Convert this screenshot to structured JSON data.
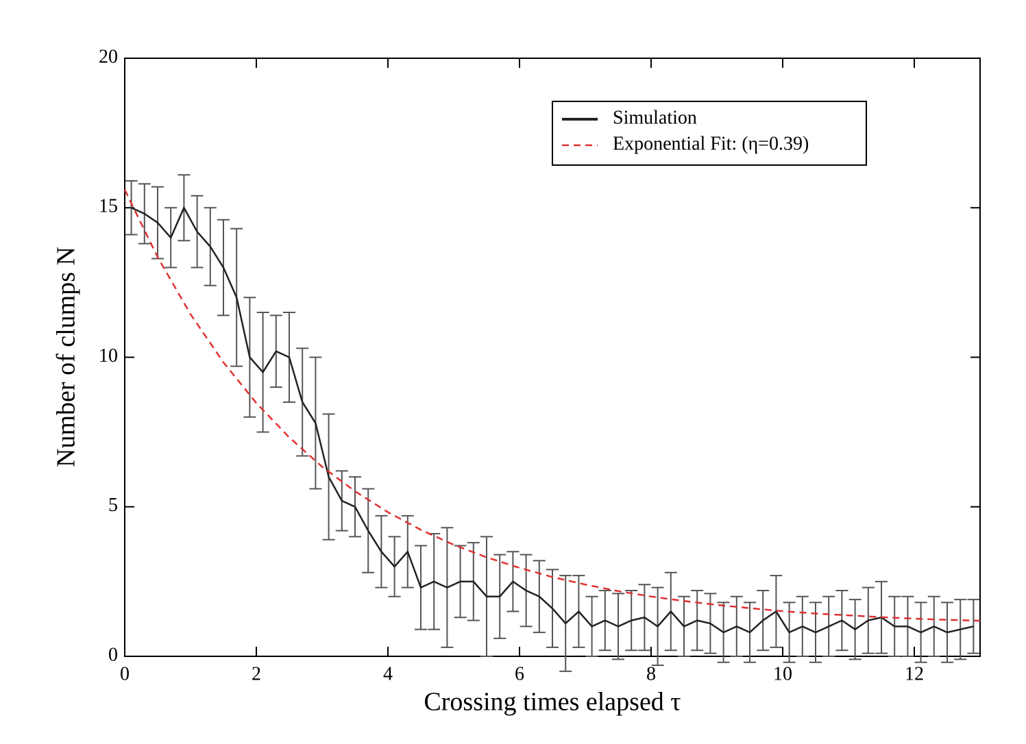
{
  "chart_data": {
    "type": "line",
    "xlabel": "Crossing times elapsed τ",
    "ylabel": "Number of clumps N",
    "xlim": [
      0,
      13
    ],
    "xticks": [
      0,
      2,
      4,
      6,
      8,
      10,
      12
    ],
    "ylim": [
      0,
      20
    ],
    "yticks": [
      0,
      5,
      10,
      15,
      20
    ],
    "legend": "upper right",
    "series": [
      {
        "name": "Simulation",
        "color": "#222222",
        "style": "solid",
        "x": [
          0.1,
          0.3,
          0.5,
          0.7,
          0.9,
          1.1,
          1.3,
          1.5,
          1.7,
          1.9,
          2.1,
          2.3,
          2.5,
          2.7,
          2.9,
          3.1,
          3.3,
          3.5,
          3.7,
          3.9,
          4.1,
          4.3,
          4.5,
          4.7,
          4.9,
          5.1,
          5.3,
          5.5,
          5.7,
          5.9,
          6.1,
          6.3,
          6.5,
          6.7,
          6.9,
          7.1,
          7.3,
          7.5,
          7.7,
          7.9,
          8.1,
          8.3,
          8.5,
          8.7,
          8.9,
          9.1,
          9.3,
          9.5,
          9.7,
          9.9,
          10.1,
          10.3,
          10.5,
          10.7,
          10.9,
          11.1,
          11.3,
          11.5,
          11.7,
          11.9,
          12.1,
          12.3,
          12.5,
          12.7,
          12.9
        ],
        "values": [
          15,
          14.8,
          14.5,
          14,
          15,
          14.2,
          13.7,
          13,
          12,
          10,
          9.5,
          10.2,
          10,
          8.5,
          7.8,
          6,
          5.2,
          5,
          4.2,
          3.5,
          3,
          3.5,
          2.3,
          2.5,
          2.3,
          2.5,
          2.5,
          2,
          2,
          2.5,
          2.2,
          2,
          1.6,
          1.1,
          1.5,
          1,
          1.2,
          1,
          1.2,
          1.3,
          1,
          1.5,
          1,
          1.2,
          1.1,
          0.8,
          1,
          0.8,
          1.2,
          1.5,
          0.8,
          1,
          0.8,
          1,
          1.2,
          0.9,
          1.2,
          1.3,
          1,
          1,
          0.8,
          1,
          0.8,
          0.9,
          1
        ],
        "errors": [
          0.9,
          1,
          1.2,
          1,
          1.1,
          1.2,
          1.3,
          1.6,
          2.3,
          2,
          2,
          1.2,
          1.5,
          1.8,
          2.2,
          2.1,
          1,
          1,
          1.4,
          1.2,
          1,
          1.2,
          1.4,
          1.6,
          2,
          1.2,
          1.3,
          2,
          1.4,
          1,
          1.2,
          1.2,
          1.3,
          1.6,
          1.2,
          1,
          1,
          1.1,
          1,
          1.1,
          1.3,
          1.3,
          1,
          1,
          1,
          1,
          1,
          1,
          1,
          1.2,
          1,
          1,
          1,
          1,
          1,
          1,
          1.1,
          1.2,
          1,
          1,
          1,
          1,
          1,
          1,
          0.9
        ]
      },
      {
        "name": "Exponential Fit: (η=0.39)",
        "color": "#e03030",
        "style": "dashed",
        "x": [
          0,
          0.5,
          1,
          1.5,
          2,
          2.5,
          3,
          3.5,
          4,
          4.5,
          5,
          5.5,
          6,
          6.5,
          7,
          7.5,
          8,
          8.5,
          9,
          9.5,
          10,
          10.5,
          11,
          11.5,
          12,
          12.5,
          13
        ],
        "values": [
          15.6,
          13.35,
          11.44,
          9.83,
          8.47,
          7.32,
          6.34,
          5.52,
          4.82,
          4.23,
          3.73,
          3.31,
          2.96,
          2.65,
          2.4,
          2.18,
          2,
          1.85,
          1.72,
          1.61,
          1.51,
          1.43,
          1.37,
          1.31,
          1.26,
          1.22,
          1.19
        ]
      }
    ]
  }
}
